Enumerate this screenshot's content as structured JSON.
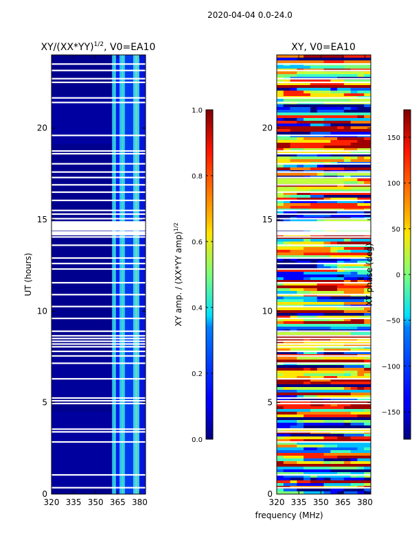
{
  "figure_title": "2020-04-04 0.0-24.0",
  "shared_xlabel": "frequency (MHz)",
  "chart_data": [
    {
      "type": "heatmap",
      "title_main": "XY/(XX*YY)",
      "title_exp": "1/2",
      "title_tail": ", V0=EA10",
      "ylabel": "UT (hours)",
      "x_ticks": [
        320,
        335,
        350,
        365,
        380
      ],
      "x_tick_labels": [
        "320",
        "335",
        "350",
        "365",
        "380"
      ],
      "xlim": [
        320,
        384
      ],
      "y_ticks": [
        0,
        5,
        10,
        15,
        20
      ],
      "y_tick_labels": [
        "0",
        "5",
        "10",
        "15",
        "20"
      ],
      "ylim": [
        0,
        24
      ],
      "colorbar": {
        "label_main": "XY amp. / (XX*YY amp)",
        "label_exp": "1/2",
        "range": [
          0.0,
          1.0
        ],
        "ticks": [
          0.0,
          0.2,
          0.4,
          0.6,
          0.8,
          1.0
        ],
        "tick_labels": [
          "0.0",
          "0.2",
          "0.4",
          "0.6",
          "0.8",
          "1.0"
        ],
        "colormap": "jet"
      },
      "flagged_ut_hours": [
        0.35,
        1.05,
        2.85,
        3.4,
        3.55,
        4.95,
        5.1,
        5.25,
        6.3,
        7.15,
        7.55,
        7.8,
        8.05,
        8.2,
        8.35,
        8.5,
        8.65,
        8.9,
        9.6,
        10.25,
        10.9,
        11.55,
        12.3,
        12.6,
        12.9,
        13.6,
        14.05,
        14.25,
        14.5,
        14.65,
        14.8,
        15.05,
        15.3,
        15.5,
        16.05,
        16.5,
        16.9,
        17.3,
        17.6,
        18.05,
        18.6,
        18.75,
        19.6,
        21.4,
        21.65,
        22.5,
        22.7,
        23.15,
        23.5
      ]
    },
    {
      "type": "heatmap",
      "title_main": "XY, V0=EA10",
      "ylabel": "",
      "x_ticks": [
        320,
        335,
        350,
        365,
        380
      ],
      "x_tick_labels": [
        "320",
        "335",
        "350",
        "365",
        "380"
      ],
      "xlim": [
        320,
        384
      ],
      "y_ticks": [
        0,
        5,
        10,
        15,
        20
      ],
      "y_tick_labels": [
        "0",
        "5",
        "10",
        "15",
        "20"
      ],
      "ylim": [
        0,
        24
      ],
      "colorbar": {
        "label_main": "XY phase (deg)",
        "range": [
          -180,
          180
        ],
        "ticks": [
          -150,
          -100,
          -50,
          0,
          50,
          100,
          150
        ],
        "tick_labels": [
          "−150",
          "−100",
          "−50",
          "0",
          "50",
          "100",
          "150"
        ],
        "colormap": "jet"
      },
      "flagged_ut_hours": [
        0.35,
        1.05,
        2.85,
        3.4,
        3.55,
        4.95,
        5.1,
        5.25,
        6.3,
        7.15,
        7.55,
        7.8,
        8.05,
        8.2,
        8.35,
        8.5,
        8.65,
        8.9,
        9.6,
        10.25,
        10.9,
        11.55,
        12.3,
        12.6,
        12.9,
        13.6,
        14.05,
        14.25,
        14.5,
        14.65,
        14.8,
        15.05,
        15.3,
        15.5,
        16.05,
        16.5,
        16.9,
        17.3,
        17.6,
        18.05,
        18.6,
        18.75,
        19.6,
        21.4,
        21.65,
        22.5,
        22.7,
        23.15,
        23.5
      ]
    }
  ]
}
